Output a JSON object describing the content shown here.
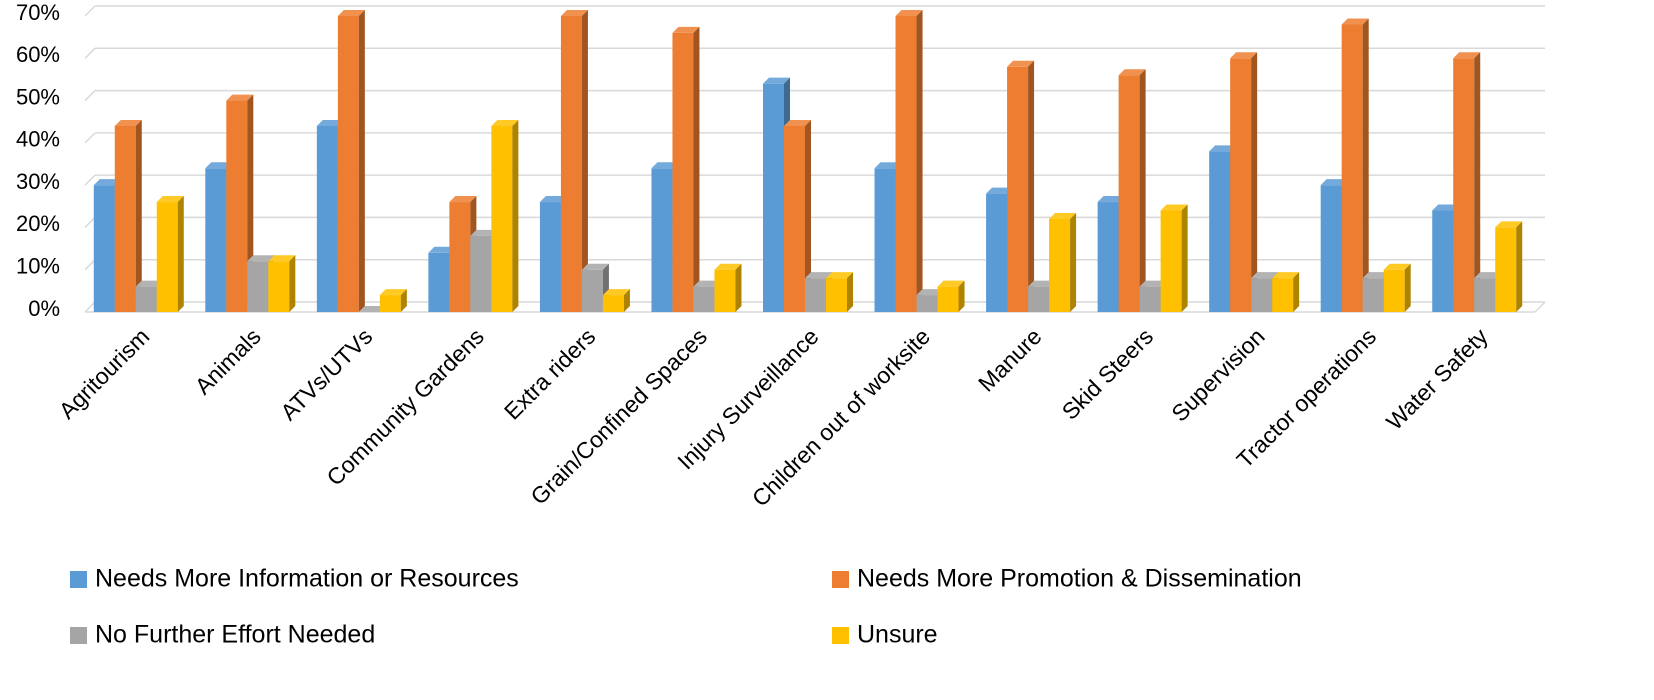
{
  "chart_data": {
    "type": "bar",
    "style": "3d-clustered-column",
    "categories": [
      "Agritourism",
      "Animals",
      "ATVs/UTVs",
      "Community Gardens",
      "Extra riders",
      "Grain/Confined Spaces",
      "Injury Surveillance",
      "Children out of worksite",
      "Manure",
      "Skid Steers",
      "Supervision",
      "Tractor operations",
      "Water Safety"
    ],
    "series": [
      {
        "name": "Needs More Information or Resources",
        "color": "#5B9BD5",
        "values": [
          30,
          34,
          44,
          14,
          26,
          34,
          54,
          34,
          28,
          26,
          38,
          30,
          24
        ]
      },
      {
        "name": "Needs More Promotion & Dissemination",
        "color": "#ED7D31",
        "values": [
          44,
          50,
          70,
          26,
          70,
          66,
          44,
          70,
          58,
          56,
          60,
          68,
          60
        ]
      },
      {
        "name": "No Further Effort Needed",
        "color": "#A5A5A5",
        "values": [
          6,
          12,
          0,
          18,
          10,
          6,
          8,
          4,
          6,
          6,
          8,
          8,
          8
        ]
      },
      {
        "name": "Unsure",
        "color": "#FFC000",
        "values": [
          26,
          12,
          4,
          44,
          4,
          10,
          8,
          6,
          22,
          24,
          8,
          10,
          20
        ]
      }
    ],
    "y_ticks": [
      "0%",
      "10%",
      "20%",
      "30%",
      "40%",
      "50%",
      "60%",
      "70%"
    ],
    "ylim": [
      0,
      70
    ],
    "y_unit": "%",
    "grid": true,
    "legend_position": "bottom"
  }
}
